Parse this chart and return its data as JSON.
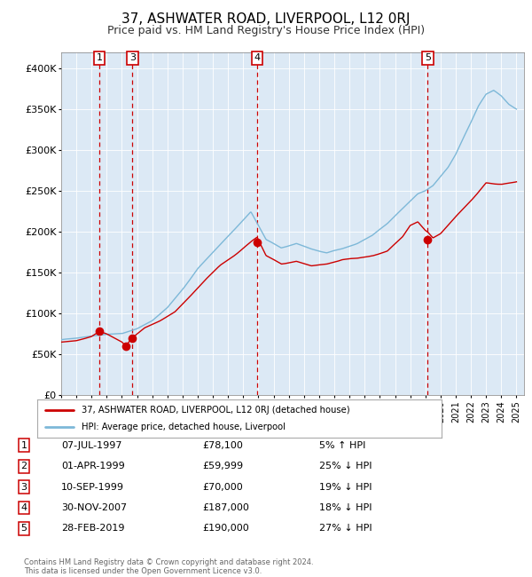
{
  "title": "37, ASHWATER ROAD, LIVERPOOL, L12 0RJ",
  "subtitle": "Price paid vs. HM Land Registry's House Price Index (HPI)",
  "title_fontsize": 11,
  "subtitle_fontsize": 9,
  "plot_bg_color": "#dce9f5",
  "ylim": [
    0,
    420000
  ],
  "yticks": [
    0,
    50000,
    100000,
    150000,
    200000,
    250000,
    300000,
    350000,
    400000
  ],
  "purchases": [
    {
      "label": "1",
      "date_num": 1997.52,
      "price": 78100
    },
    {
      "label": "2",
      "date_num": 1999.25,
      "price": 59999
    },
    {
      "label": "3",
      "date_num": 1999.69,
      "price": 70000
    },
    {
      "label": "4",
      "date_num": 2007.91,
      "price": 187000
    },
    {
      "label": "5",
      "date_num": 2019.16,
      "price": 190000
    }
  ],
  "vline_dates": [
    1997.52,
    1999.69,
    2007.91,
    2019.16
  ],
  "legend_line1": "37, ASHWATER ROAD, LIVERPOOL, L12 0RJ (detached house)",
  "legend_line2": "HPI: Average price, detached house, Liverpool",
  "table_rows": [
    [
      "1",
      "07-JUL-1997",
      "£78,100",
      "5% ↑ HPI"
    ],
    [
      "2",
      "01-APR-1999",
      "£59,999",
      "25% ↓ HPI"
    ],
    [
      "3",
      "10-SEP-1999",
      "£70,000",
      "19% ↓ HPI"
    ],
    [
      "4",
      "30-NOV-2007",
      "£187,000",
      "18% ↓ HPI"
    ],
    [
      "5",
      "28-FEB-2019",
      "£190,000",
      "27% ↓ HPI"
    ]
  ],
  "footer": "Contains HM Land Registry data © Crown copyright and database right 2024.\nThis data is licensed under the Open Government Licence v3.0.",
  "hpi_color": "#7db8d8",
  "price_color": "#cc0000",
  "vline_color": "#cc0000",
  "marker_color": "#cc0000",
  "xmin": 1995.0,
  "xmax": 2025.5,
  "hpi_anchors_t": [
    1995.0,
    1996.0,
    1997.0,
    1998.0,
    1999.0,
    2000.0,
    2001.0,
    2002.0,
    2003.0,
    2004.0,
    2005.0,
    2006.0,
    2007.0,
    2007.5,
    2008.5,
    2009.5,
    2010.5,
    2011.5,
    2012.5,
    2013.5,
    2014.5,
    2015.5,
    2016.5,
    2017.5,
    2018.5,
    2019.0,
    2019.5,
    2020.5,
    2021.0,
    2022.0,
    2022.5,
    2023.0,
    2023.5,
    2024.0,
    2024.5,
    2025.0
  ],
  "hpi_anchors_v": [
    68000,
    70000,
    73000,
    75000,
    76000,
    82000,
    92000,
    108000,
    130000,
    155000,
    175000,
    195000,
    215000,
    225000,
    190000,
    180000,
    185000,
    178000,
    173000,
    178000,
    185000,
    195000,
    210000,
    230000,
    248000,
    252000,
    258000,
    280000,
    295000,
    335000,
    355000,
    370000,
    375000,
    368000,
    358000,
    352000
  ],
  "price_anchors_t": [
    1995.0,
    1996.0,
    1997.0,
    1997.52,
    1998.0,
    1999.0,
    1999.25,
    1999.69,
    2000.5,
    2001.5,
    2002.5,
    2003.5,
    2004.5,
    2005.5,
    2006.5,
    2007.5,
    2007.91,
    2008.5,
    2009.5,
    2010.5,
    2011.5,
    2012.5,
    2013.5,
    2014.5,
    2015.5,
    2016.5,
    2017.5,
    2018.0,
    2018.5,
    2019.0,
    2019.16,
    2019.5,
    2020.0,
    2021.0,
    2022.0,
    2023.0,
    2024.0,
    2025.0
  ],
  "price_anchors_v": [
    65000,
    67000,
    72000,
    78100,
    75000,
    65000,
    59999,
    70000,
    82000,
    90000,
    100000,
    118000,
    138000,
    155000,
    168000,
    182000,
    187000,
    165000,
    155000,
    158000,
    152000,
    153000,
    158000,
    160000,
    163000,
    168000,
    185000,
    198000,
    202000,
    192000,
    190000,
    183000,
    188000,
    208000,
    228000,
    248000,
    245000,
    247000
  ]
}
